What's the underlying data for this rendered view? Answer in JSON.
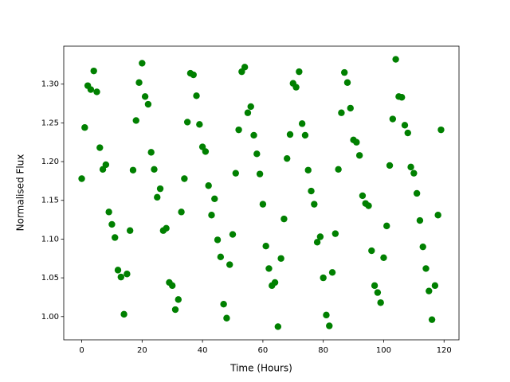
{
  "chart_data": {
    "type": "scatter",
    "xlabel": "Time (Hours)",
    "ylabel": "Normalised Flux",
    "xlim": [
      -5.95,
      124.95
    ],
    "ylim": [
      0.97,
      1.349
    ],
    "xticks": [
      0,
      20,
      40,
      60,
      80,
      100,
      120
    ],
    "yticks": [
      {
        "value": 1.0,
        "label": "1.00"
      },
      {
        "value": 1.05,
        "label": "1.05"
      },
      {
        "value": 1.1,
        "label": "1.10"
      },
      {
        "value": 1.15,
        "label": "1.15"
      },
      {
        "value": 1.2,
        "label": "1.20"
      },
      {
        "value": 1.25,
        "label": "1.25"
      },
      {
        "value": 1.3,
        "label": "1.30"
      }
    ],
    "color": "#008000",
    "x": [
      0,
      1,
      2,
      3,
      4,
      5,
      6,
      7,
      8,
      9,
      10,
      11,
      12,
      13,
      14,
      15,
      16,
      17,
      18,
      19,
      20,
      21,
      22,
      23,
      24,
      25,
      26,
      27,
      28,
      29,
      30,
      31,
      32,
      33,
      34,
      35,
      36,
      37,
      38,
      39,
      40,
      41,
      42,
      43,
      44,
      45,
      46,
      47,
      48,
      49,
      50,
      51,
      52,
      53,
      54,
      55,
      56,
      57,
      58,
      59,
      60,
      61,
      62,
      63,
      64,
      65,
      66,
      67,
      68,
      69,
      70,
      71,
      72,
      73,
      74,
      75,
      76,
      77,
      78,
      79,
      80,
      81,
      82,
      83,
      84,
      85,
      86,
      87,
      88,
      89,
      90,
      91,
      92,
      93,
      94,
      95,
      96,
      97,
      98,
      99,
      100,
      101,
      102,
      103,
      104,
      105,
      106,
      107,
      108,
      109,
      110,
      111,
      112,
      113,
      114,
      115,
      116,
      117,
      118,
      119
    ],
    "values": [
      1.178,
      1.244,
      1.298,
      1.293,
      1.317,
      1.29,
      1.218,
      1.19,
      1.196,
      1.135,
      1.119,
      1.102,
      1.06,
      1.051,
      1.003,
      1.055,
      1.111,
      1.189,
      1.253,
      1.302,
      1.327,
      1.284,
      1.274,
      1.212,
      1.19,
      1.154,
      1.165,
      1.111,
      1.114,
      1.044,
      1.04,
      1.009,
      1.022,
      1.135,
      1.178,
      1.251,
      1.314,
      1.312,
      1.285,
      1.248,
      1.219,
      1.213,
      1.169,
      1.131,
      1.152,
      1.099,
      1.077,
      1.016,
      0.998,
      1.067,
      1.106,
      1.185,
      1.241,
      1.316,
      1.322,
      1.263,
      1.271,
      1.234,
      1.21,
      1.184,
      1.145,
      1.091,
      1.062,
      1.04,
      1.044,
      0.987,
      1.075,
      1.126,
      1.204,
      1.235,
      1.301,
      1.296,
      1.316,
      1.249,
      1.234,
      1.189,
      1.162,
      1.145,
      1.096,
      1.103,
      1.05,
      1.002,
      0.988,
      1.057,
      1.107,
      1.19,
      1.263,
      1.315,
      1.302,
      1.269,
      1.228,
      1.225,
      1.208,
      1.156,
      1.146,
      1.143,
      1.085,
      1.04,
      1.031,
      1.018,
      1.076,
      1.117,
      1.195,
      1.255,
      1.332,
      1.284,
      1.283,
      1.247,
      1.237,
      1.193,
      1.185,
      1.159,
      1.124,
      1.09,
      1.062,
      1.033,
      0.996,
      1.04,
      1.131,
      1.241
    ]
  }
}
